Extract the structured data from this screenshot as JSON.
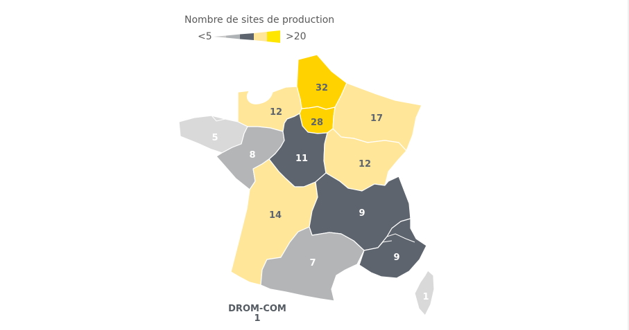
{
  "legend": {
    "title": "Nombre de sites de production",
    "low_label": "<5",
    "high_label": ">20",
    "colors": [
      "#c9c9c9",
      "#b0b3b6",
      "#5d646d",
      "#ffe699",
      "#ffe600"
    ]
  },
  "regions": [
    {
      "id": "hauts-de-france",
      "value": "32",
      "color": "#ffd200"
    },
    {
      "id": "normandie",
      "value": "12",
      "color": "#ffe699"
    },
    {
      "id": "ile-de-france",
      "value": "28",
      "color": "#ffd200"
    },
    {
      "id": "grand-est",
      "value": "17",
      "color": "#ffe699"
    },
    {
      "id": "bretagne",
      "value": "5",
      "color": "#d9d9d9"
    },
    {
      "id": "pays-de-la-loire",
      "value": "8",
      "color": "#b4b5b7"
    },
    {
      "id": "centre-val-de-loire",
      "value": "11",
      "color": "#5d646d"
    },
    {
      "id": "bourgogne-franche-comte",
      "value": "12",
      "color": "#ffe699"
    },
    {
      "id": "nouvelle-aquitaine",
      "value": "14",
      "color": "#ffe699"
    },
    {
      "id": "auvergne-rhone-alpes",
      "value": "9",
      "color": "#5d646d"
    },
    {
      "id": "occitanie",
      "value": "7",
      "color": "#b4b5b7"
    },
    {
      "id": "provence-alpes-cote-dazur",
      "value": "9",
      "color": "#5d646d"
    },
    {
      "id": "corse",
      "value": "1",
      "color": "#d9d9d9"
    }
  ],
  "drom_com": {
    "label": "DROM-COM",
    "value": "1"
  }
}
